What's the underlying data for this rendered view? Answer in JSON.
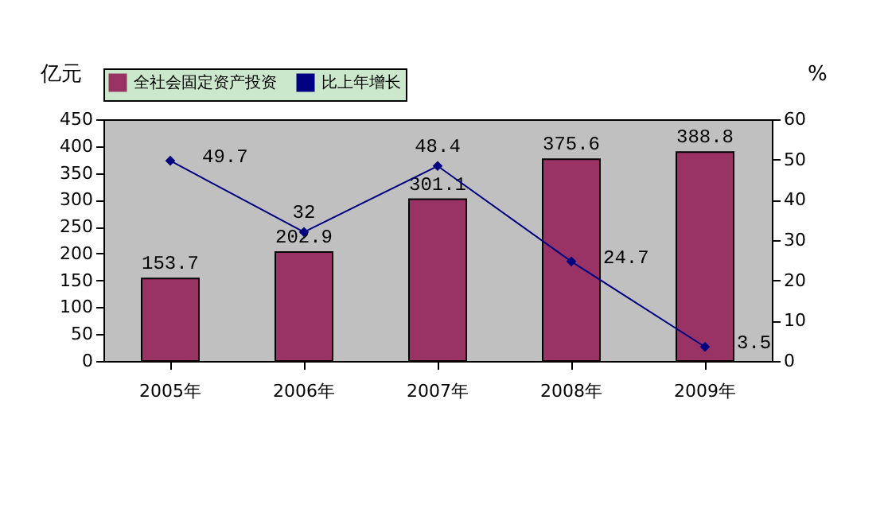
{
  "chart_data": {
    "type": "bar",
    "categories": [
      "2005年",
      "2006年",
      "2007年",
      "2008年",
      "2009年"
    ],
    "series": [
      {
        "name": "全社会固定资产投资",
        "type": "bar",
        "color": "#993366",
        "values": [
          153.7,
          202.9,
          301.1,
          375.6,
          388.8
        ]
      },
      {
        "name": "比上年增长",
        "type": "line",
        "axis": "y2",
        "marker": "diamond",
        "color": "#000080",
        "values": [
          49.7,
          32,
          48.4,
          24.7,
          3.5
        ]
      }
    ],
    "ylabel": "亿元",
    "y2label": "%",
    "ylim": [
      0,
      450
    ],
    "yticks": [
      0,
      50,
      100,
      150,
      200,
      250,
      300,
      350,
      400,
      450
    ],
    "y2lim": [
      0,
      60
    ],
    "y2ticks": [
      0,
      10,
      20,
      30,
      40,
      50,
      60
    ],
    "data_labels": true,
    "legend": "top",
    "grid": false
  }
}
